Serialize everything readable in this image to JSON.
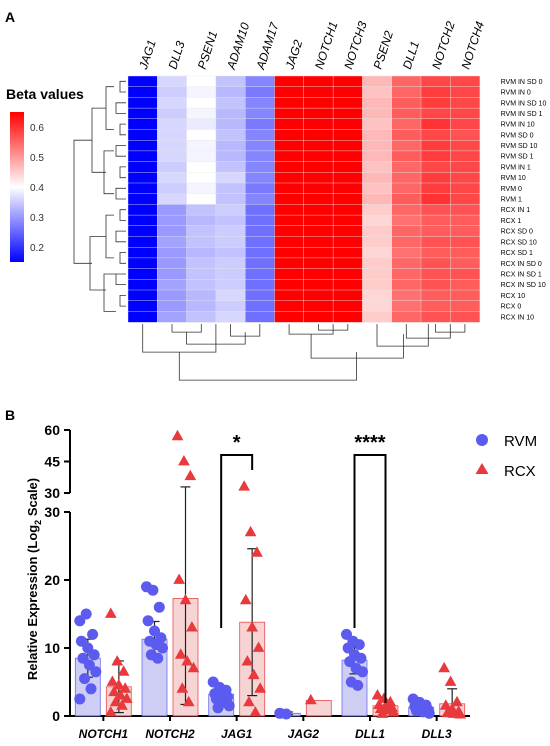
{
  "panel_a_label": "A",
  "panel_b_label": "B",
  "chart_data": [
    {
      "type": "heatmap",
      "legend_title": "Beta values",
      "colorbar_ticks": [
        "0.6",
        "0.5",
        "0.4",
        "0.3",
        "0.2"
      ],
      "colorbar_values": [
        0.6,
        0.5,
        0.4,
        0.3,
        0.2
      ],
      "color_low": "#0000ff",
      "color_mid": "#ffffff",
      "color_high": "#ff0000",
      "columns": [
        "JAG1",
        "DLL3",
        "PSEN1",
        "ADAM10",
        "ADAM17",
        "JAG2",
        "NOTCH1",
        "NOTCH3",
        "PSEN2",
        "DLL1",
        "NOTCH2",
        "NOTCH4"
      ],
      "rows": [
        "RVM IN SD 0",
        "RVM IN 0",
        "RVM IN SD 10",
        "RVM IN SD 1",
        "RVM IN 10",
        "RVM SD 0",
        "RVM SD 10",
        "RVM SD 1",
        "RVM IN 1",
        "RVM 10",
        "RVM 0",
        "RVM 1",
        "RCX IN 1",
        "RCX 1",
        "RCX SD 0",
        "RCX SD 10",
        "RCX SD 1",
        "RCX IN SD 0",
        "RCX IN SD 1",
        "RCX IN SD 10",
        "RCX 10",
        "RCX 0",
        "RCX IN 10"
      ],
      "values": [
        [
          0.1,
          0.36,
          0.4,
          0.34,
          0.28,
          0.66,
          0.68,
          0.68,
          0.47,
          0.55,
          0.58,
          0.58
        ],
        [
          0.1,
          0.35,
          0.39,
          0.33,
          0.27,
          0.66,
          0.68,
          0.68,
          0.46,
          0.55,
          0.59,
          0.58
        ],
        [
          0.1,
          0.36,
          0.4,
          0.34,
          0.28,
          0.66,
          0.68,
          0.68,
          0.47,
          0.56,
          0.59,
          0.58
        ],
        [
          0.1,
          0.35,
          0.39,
          0.33,
          0.28,
          0.66,
          0.68,
          0.68,
          0.47,
          0.56,
          0.58,
          0.58
        ],
        [
          0.1,
          0.36,
          0.38,
          0.33,
          0.27,
          0.66,
          0.68,
          0.68,
          0.46,
          0.55,
          0.6,
          0.58
        ],
        [
          0.1,
          0.36,
          0.4,
          0.34,
          0.28,
          0.66,
          0.68,
          0.68,
          0.47,
          0.56,
          0.58,
          0.57
        ],
        [
          0.1,
          0.36,
          0.39,
          0.33,
          0.28,
          0.66,
          0.68,
          0.68,
          0.47,
          0.55,
          0.59,
          0.58
        ],
        [
          0.1,
          0.36,
          0.39,
          0.33,
          0.28,
          0.66,
          0.68,
          0.68,
          0.47,
          0.56,
          0.59,
          0.58
        ],
        [
          0.1,
          0.35,
          0.4,
          0.34,
          0.28,
          0.66,
          0.68,
          0.68,
          0.46,
          0.55,
          0.58,
          0.58
        ],
        [
          0.1,
          0.36,
          0.4,
          0.36,
          0.28,
          0.66,
          0.68,
          0.68,
          0.47,
          0.55,
          0.59,
          0.58
        ],
        [
          0.1,
          0.35,
          0.39,
          0.34,
          0.27,
          0.66,
          0.68,
          0.68,
          0.46,
          0.55,
          0.59,
          0.58
        ],
        [
          0.1,
          0.36,
          0.4,
          0.34,
          0.28,
          0.66,
          0.68,
          0.68,
          0.47,
          0.56,
          0.6,
          0.58
        ],
        [
          0.1,
          0.3,
          0.34,
          0.35,
          0.26,
          0.66,
          0.68,
          0.68,
          0.45,
          0.55,
          0.57,
          0.57
        ],
        [
          0.1,
          0.3,
          0.33,
          0.34,
          0.26,
          0.66,
          0.68,
          0.68,
          0.44,
          0.54,
          0.56,
          0.56
        ],
        [
          0.1,
          0.3,
          0.34,
          0.35,
          0.26,
          0.66,
          0.68,
          0.68,
          0.45,
          0.55,
          0.56,
          0.56
        ],
        [
          0.1,
          0.31,
          0.34,
          0.35,
          0.26,
          0.66,
          0.68,
          0.68,
          0.45,
          0.55,
          0.57,
          0.57
        ],
        [
          0.1,
          0.3,
          0.33,
          0.34,
          0.26,
          0.66,
          0.68,
          0.68,
          0.44,
          0.54,
          0.56,
          0.56
        ],
        [
          0.1,
          0.3,
          0.34,
          0.35,
          0.26,
          0.66,
          0.68,
          0.68,
          0.45,
          0.55,
          0.57,
          0.56
        ],
        [
          0.1,
          0.3,
          0.34,
          0.35,
          0.26,
          0.66,
          0.68,
          0.68,
          0.45,
          0.55,
          0.57,
          0.57
        ],
        [
          0.1,
          0.31,
          0.34,
          0.35,
          0.26,
          0.66,
          0.68,
          0.68,
          0.45,
          0.55,
          0.57,
          0.56
        ],
        [
          0.1,
          0.3,
          0.33,
          0.36,
          0.26,
          0.66,
          0.68,
          0.68,
          0.44,
          0.54,
          0.56,
          0.56
        ],
        [
          0.1,
          0.3,
          0.33,
          0.35,
          0.26,
          0.66,
          0.68,
          0.68,
          0.44,
          0.54,
          0.56,
          0.56
        ],
        [
          0.1,
          0.31,
          0.34,
          0.36,
          0.26,
          0.66,
          0.68,
          0.68,
          0.45,
          0.55,
          0.57,
          0.57
        ]
      ]
    },
    {
      "type": "bar",
      "ylabel": "Relative Expression (Log2 Scale)",
      "ylabel_main": "Relative Expression (Log",
      "ylabel_sub": "2",
      "ylabel_end": " Scale)",
      "categories": [
        "NOTCH1",
        "NOTCH2",
        "JAG1",
        "JAG2",
        "DLL1",
        "DLL3"
      ],
      "yticks_lower": [
        "0",
        "10",
        "20",
        "30"
      ],
      "yticks_upper": [
        "30",
        "45",
        "60"
      ],
      "ylim_lower": [
        0,
        30
      ],
      "ylim_upper": [
        30,
        60
      ],
      "rvm_color": "#5b5bf0",
      "rcx_color": "#e8393d",
      "series": [
        {
          "name": "RVM",
          "marker": "circle",
          "means": [
            8.5,
            11.3,
            3.2,
            0.4,
            8.2,
            1.3
          ],
          "sd": [
            2.8,
            2.6,
            1.0,
            0.2,
            2.0,
            0.8
          ],
          "points": [
            [
              14,
              15,
              12,
              11,
              10,
              9,
              8.5,
              7.5,
              6.5,
              5.5,
              4,
              2.5
            ],
            [
              19,
              18.5,
              16,
              14,
              12.5,
              11.5,
              11,
              10.5,
              10,
              9,
              8.5
            ],
            [
              5,
              4.2,
              3.8,
              3.3,
              3,
              2.8,
              2.5,
              2,
              1.5,
              1.2
            ],
            [
              0.4,
              0.3
            ],
            [
              12,
              11,
              10.5,
              10,
              9,
              8.5,
              8,
              7,
              6.5,
              5,
              4.5
            ],
            [
              2.5,
              2,
              1.6,
              1.4,
              1.2,
              1,
              0.8,
              0.6,
              0.4
            ]
          ]
        },
        {
          "name": "RCX",
          "marker": "triangle",
          "means": [
            4.3,
            17.3,
            13.8,
            2.3,
            1.5,
            1.8
          ],
          "sd": [
            3.8,
            15.6,
            10.8,
            0,
            0.8,
            2.2
          ],
          "points": [
            [
              15,
              8,
              6.5,
              5,
              4.5,
              4,
              3.5,
              3,
              2.5,
              2,
              1.5,
              0.5
            ],
            [
              57,
              45,
              38,
              20,
              17,
              13,
              9,
              8,
              7,
              4,
              2
            ],
            [
              33,
              27,
              24,
              17,
              13,
              10,
              8,
              6,
              4,
              2,
              0.5
            ],
            [
              2.3
            ],
            [
              3,
              2.5,
              2,
              1.6,
              1.4,
              1.2,
              1,
              0.8,
              0.5,
              0.3
            ],
            [
              7,
              5,
              2,
              1.5,
              1,
              0.6,
              0.4,
              0.3,
              0.2
            ]
          ]
        }
      ],
      "significance": [
        {
          "category_index": 2,
          "label": "*"
        },
        {
          "category_index": 4,
          "label": "****"
        }
      ]
    }
  ]
}
